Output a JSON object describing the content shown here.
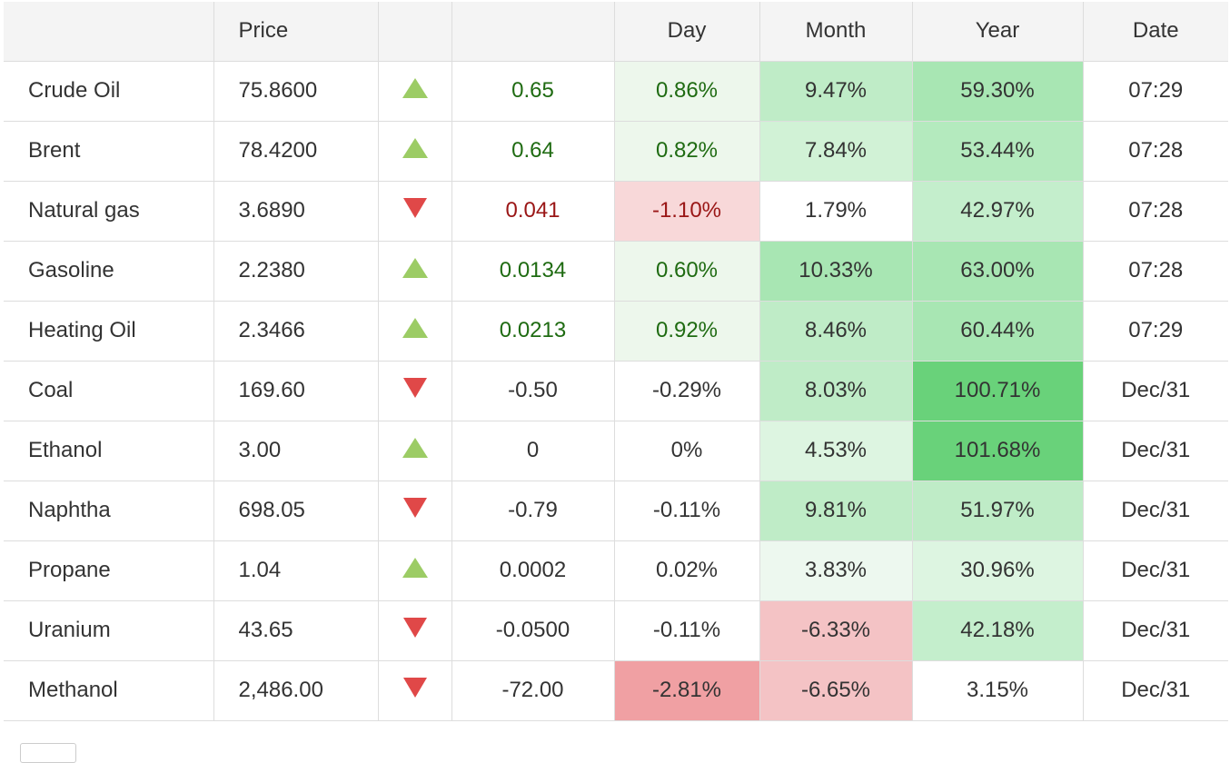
{
  "table": {
    "headers": [
      "",
      "Price",
      "",
      "",
      "Day",
      "Month",
      "Year",
      "Date"
    ],
    "rows": [
      {
        "name": "Crude Oil",
        "price": "75.8600",
        "dir": "up",
        "change": "0.65",
        "day": "0.86%",
        "month": "9.47%",
        "year": "59.30%",
        "date": "07:29",
        "change_color": "#1f6b12",
        "day_color": "#1f6b12",
        "day_bg": "#edf7ec",
        "month_bg": "#bfecc7",
        "year_bg": "#a8e6b3"
      },
      {
        "name": "Brent",
        "price": "78.4200",
        "dir": "up",
        "change": "0.64",
        "day": "0.82%",
        "month": "7.84%",
        "year": "53.44%",
        "date": "07:28",
        "change_color": "#1f6b12",
        "day_color": "#1f6b12",
        "day_bg": "#edf7ec",
        "month_bg": "#d1f2d6",
        "year_bg": "#b4eabe"
      },
      {
        "name": "Natural gas",
        "price": "3.6890",
        "dir": "down",
        "change": "0.041",
        "day": "-1.10%",
        "month": "1.79%",
        "year": "42.97%",
        "date": "07:28",
        "change_color": "#9a1616",
        "day_color": "#9a1616",
        "day_bg": "#f8d8d9",
        "month_bg": "#ffffff",
        "year_bg": "#c4eecc"
      },
      {
        "name": "Gasoline",
        "price": "2.2380",
        "dir": "up",
        "change": "0.0134",
        "day": "0.60%",
        "month": "10.33%",
        "year": "63.00%",
        "date": "07:28",
        "change_color": "#1f6b12",
        "day_color": "#1f6b12",
        "day_bg": "#edf7ec",
        "month_bg": "#a8e6b3",
        "year_bg": "#a8e6b3"
      },
      {
        "name": "Heating Oil",
        "price": "2.3466",
        "dir": "up",
        "change": "0.0213",
        "day": "0.92%",
        "month": "8.46%",
        "year": "60.44%",
        "date": "07:29",
        "change_color": "#1f6b12",
        "day_color": "#1f6b12",
        "day_bg": "#edf7ec",
        "month_bg": "#bfecc7",
        "year_bg": "#a8e6b3"
      },
      {
        "name": "Coal",
        "price": "169.60",
        "dir": "down",
        "change": "-0.50",
        "day": "-0.29%",
        "month": "8.03%",
        "year": "100.71%",
        "date": "Dec/31",
        "change_color": "#333333",
        "day_color": "#333333",
        "day_bg": "#ffffff",
        "month_bg": "#bfecc7",
        "year_bg": "#69d27a"
      },
      {
        "name": "Ethanol",
        "price": "3.00",
        "dir": "up",
        "change": "0",
        "day": "0%",
        "month": "4.53%",
        "year": "101.68%",
        "date": "Dec/31",
        "change_color": "#333333",
        "day_color": "#333333",
        "day_bg": "#ffffff",
        "month_bg": "#ddf5e1",
        "year_bg": "#69d27a"
      },
      {
        "name": "Naphtha",
        "price": "698.05",
        "dir": "down",
        "change": "-0.79",
        "day": "-0.11%",
        "month": "9.81%",
        "year": "51.97%",
        "date": "Dec/31",
        "change_color": "#333333",
        "day_color": "#333333",
        "day_bg": "#ffffff",
        "month_bg": "#bfecc7",
        "year_bg": "#bfecc7"
      },
      {
        "name": "Propane",
        "price": "1.04",
        "dir": "up",
        "change": "0.0002",
        "day": "0.02%",
        "month": "3.83%",
        "year": "30.96%",
        "date": "Dec/31",
        "change_color": "#333333",
        "day_color": "#333333",
        "day_bg": "#ffffff",
        "month_bg": "#edf8ef",
        "year_bg": "#ddf5e1"
      },
      {
        "name": "Uranium",
        "price": "43.65",
        "dir": "down",
        "change": "-0.0500",
        "day": "-0.11%",
        "month": "-6.33%",
        "year": "42.18%",
        "date": "Dec/31",
        "change_color": "#333333",
        "day_color": "#333333",
        "day_bg": "#ffffff",
        "month_bg": "#f4c3c5",
        "year_bg": "#c4eecc"
      },
      {
        "name": "Methanol",
        "price": "2,486.00",
        "dir": "down",
        "change": "-72.00",
        "day": "-2.81%",
        "month": "-6.65%",
        "year": "3.15%",
        "date": "Dec/31",
        "change_color": "#333333",
        "day_color": "#333333",
        "day_bg": "#f0a0a3",
        "month_bg": "#f4c3c5",
        "year_bg": "#ffffff"
      }
    ]
  }
}
